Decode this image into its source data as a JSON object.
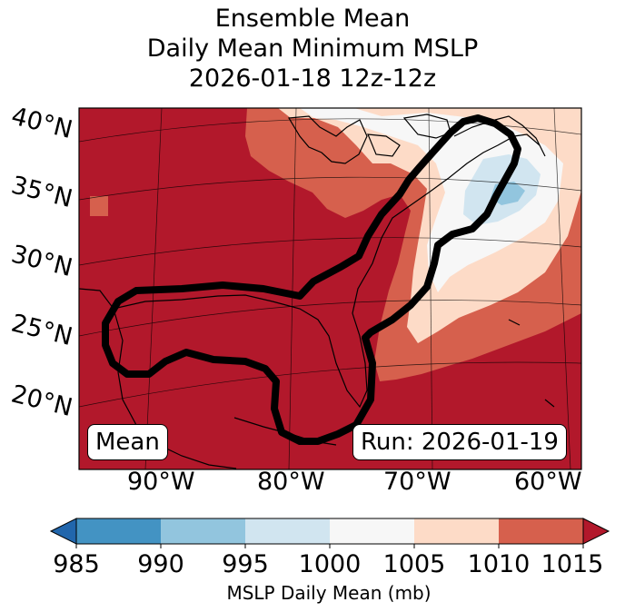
{
  "title": {
    "line1": "Ensemble Mean",
    "line2": "Daily Mean Minimum MSLP",
    "line3": "2026-01-18 12z-12z"
  },
  "map": {
    "lat_labels": [
      "40°N",
      "35°N",
      "30°N",
      "25°N",
      "20°N"
    ],
    "lon_labels": [
      "90°W",
      "80°W",
      "70°W",
      "60°W"
    ],
    "mean_label": "Mean",
    "run_label": "Run: 2026-01-19"
  },
  "colorbar": {
    "label": "MSLP Daily Mean (mb)",
    "ticks": [
      "985",
      "990",
      "995",
      "1000",
      "1005",
      "1010",
      "1015"
    ],
    "colors": {
      "lt985": "#2166ac",
      "985_990": "#4393c3",
      "990_995": "#92c5de",
      "995_1000": "#d1e5f0",
      "1000_1005": "#f7f7f7",
      "1005_1010": "#fddbc7",
      "1010_1015": "#d6604d",
      "gt1015": "#b2182b"
    }
  }
}
